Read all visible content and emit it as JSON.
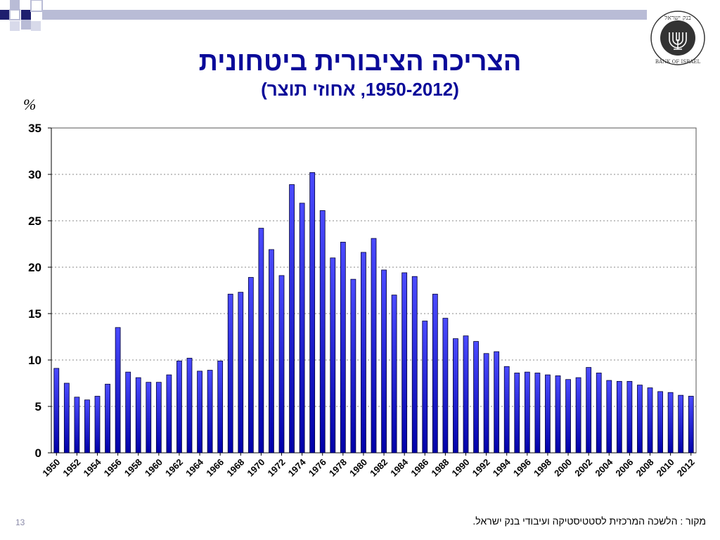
{
  "slide": {
    "title": "הצריכה הציבורית ביטחונית",
    "subtitle": "(1950-2012, אחוזי תוצר)",
    "unit_label": "%",
    "source": "מקור : הלשכה המרכזית לסטטיסטיקה ועיבודי בנק ישראל.",
    "slide_number": "13",
    "logo_text": "בנק ישראל BANK OF ISRAEL"
  },
  "colors": {
    "title": "#0a0a99",
    "bar_light": "#4b4bff",
    "bar_dark": "#0000a8",
    "deco_navy": "#1e1e6e",
    "deco_band": "#b9bcd6"
  },
  "chart_data": {
    "type": "bar",
    "title": "הצריכה הציבורית ביטחונית",
    "subtitle": "(1950-2012, אחוזי תוצר)",
    "ylabel": "%",
    "xlabel": "",
    "ylim": [
      0,
      35
    ],
    "yticks": [
      0,
      5,
      10,
      15,
      20,
      25,
      30,
      35
    ],
    "grid": true,
    "x_tick_labels": [
      "1950",
      "1952",
      "1954",
      "1956",
      "1958",
      "1960",
      "1962",
      "1964",
      "1966",
      "1968",
      "1970",
      "1972",
      "1974",
      "1976",
      "1978",
      "1980",
      "1982",
      "1984",
      "1986",
      "1988",
      "1990",
      "1992",
      "1994",
      "1996",
      "1998",
      "2000",
      "2002",
      "2004",
      "2006",
      "2008",
      "2010",
      "2012"
    ],
    "categories": [
      1950,
      1951,
      1952,
      1953,
      1954,
      1955,
      1956,
      1957,
      1958,
      1959,
      1960,
      1961,
      1962,
      1963,
      1964,
      1965,
      1966,
      1967,
      1968,
      1969,
      1970,
      1971,
      1972,
      1973,
      1974,
      1975,
      1976,
      1977,
      1978,
      1979,
      1980,
      1981,
      1982,
      1983,
      1984,
      1985,
      1986,
      1987,
      1988,
      1989,
      1990,
      1991,
      1992,
      1993,
      1994,
      1995,
      1996,
      1997,
      1998,
      1999,
      2000,
      2001,
      2002,
      2003,
      2004,
      2005,
      2006,
      2007,
      2008,
      2009,
      2010,
      2011,
      2012
    ],
    "values": [
      9.1,
      7.5,
      6.0,
      5.7,
      6.1,
      7.4,
      13.5,
      8.7,
      8.1,
      7.6,
      7.6,
      8.4,
      9.9,
      10.2,
      8.8,
      8.9,
      9.9,
      17.1,
      17.3,
      18.9,
      24.2,
      21.9,
      19.1,
      28.9,
      26.9,
      30.2,
      26.1,
      21.0,
      22.7,
      18.7,
      21.6,
      23.1,
      19.7,
      17.0,
      19.4,
      19.0,
      14.2,
      17.1,
      14.5,
      12.3,
      12.6,
      12.0,
      10.7,
      10.9,
      9.3,
      8.6,
      8.7,
      8.6,
      8.4,
      8.3,
      7.9,
      8.1,
      9.2,
      8.6,
      7.8,
      7.7,
      7.7,
      7.3,
      7.0,
      6.6,
      6.5,
      6.2,
      6.1
    ]
  }
}
